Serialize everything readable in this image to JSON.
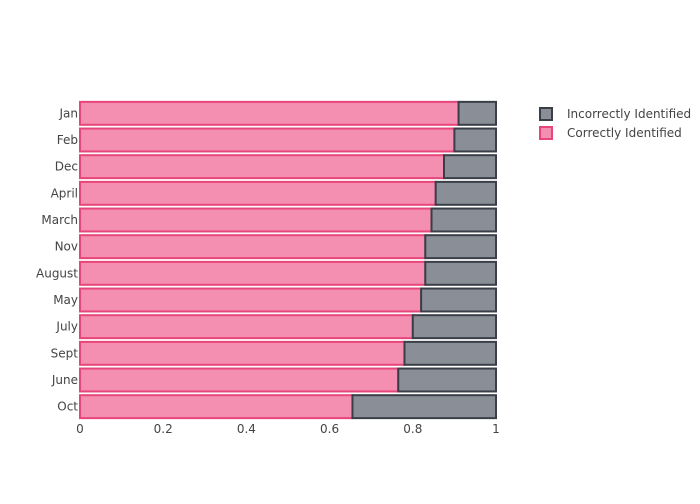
{
  "chart_data": {
    "type": "bar",
    "orientation": "horizontal",
    "stacked": true,
    "categories": [
      "Jan",
      "Feb",
      "Dec",
      "April",
      "March",
      "Nov",
      "August",
      "May",
      "July",
      "Sept",
      "June",
      "Oct"
    ],
    "series": [
      {
        "name": "Correctly Identified",
        "color": "#f48fb1",
        "border_color": "#e8457a",
        "values": [
          0.91,
          0.9,
          0.875,
          0.855,
          0.845,
          0.83,
          0.83,
          0.82,
          0.8,
          0.78,
          0.765,
          0.655
        ]
      },
      {
        "name": "Incorrectly Identified",
        "color": "#8a8e96",
        "border_color": "#3a3f47",
        "values": [
          0.09,
          0.1,
          0.125,
          0.145,
          0.155,
          0.17,
          0.17,
          0.18,
          0.2,
          0.22,
          0.235,
          0.345
        ]
      }
    ],
    "xlim": [
      0,
      1
    ],
    "xticks": [
      "0",
      "0.2",
      "0.4",
      "0.6",
      "0.8",
      "1"
    ],
    "title": "",
    "xlabel": "",
    "ylabel": "",
    "grid": false,
    "legend_position": "top-right",
    "legend_order": [
      "Incorrectly Identified",
      "Correctly Identified"
    ]
  }
}
